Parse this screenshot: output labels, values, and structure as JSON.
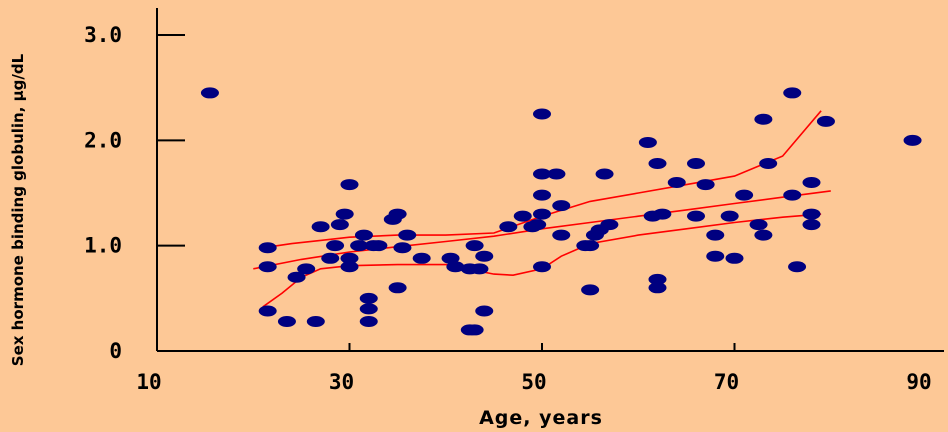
{
  "chart_data": {
    "type": "scatter",
    "title": "",
    "xlabel": "Age, years",
    "ylabel": "Sex hormone binding globulin, µg/dL",
    "xlim": [
      10,
      90
    ],
    "ylim": [
      0,
      3.0
    ],
    "x_ticks": [
      "10",
      "30",
      "50",
      "70",
      "90"
    ],
    "y_ticks": [
      "0",
      "1.0",
      "2.0",
      "3.0"
    ],
    "grid": false,
    "legend": "none",
    "colors": {
      "background": "#fdc896",
      "points": "#000080",
      "curves": "#ff0000",
      "axes": "#000000"
    },
    "points": [
      [
        15.5,
        2.45
      ],
      [
        21.5,
        0.98
      ],
      [
        21.5,
        0.8
      ],
      [
        21.5,
        0.38
      ],
      [
        23.5,
        0.28
      ],
      [
        24.5,
        0.7
      ],
      [
        25.5,
        0.78
      ],
      [
        26.5,
        0.28
      ],
      [
        27,
        1.18
      ],
      [
        28,
        0.88
      ],
      [
        28.5,
        1.0
      ],
      [
        29,
        1.2
      ],
      [
        29.5,
        1.3
      ],
      [
        30,
        0.88
      ],
      [
        30,
        1.58
      ],
      [
        30,
        0.8
      ],
      [
        31,
        1.0
      ],
      [
        31.5,
        1.1
      ],
      [
        32,
        0.5
      ],
      [
        32,
        0.4
      ],
      [
        32,
        0.28
      ],
      [
        32.5,
        1.0
      ],
      [
        33,
        1.0
      ],
      [
        34.5,
        1.25
      ],
      [
        35,
        1.3
      ],
      [
        35,
        0.6
      ],
      [
        35.5,
        0.98
      ],
      [
        36,
        1.1
      ],
      [
        37.5,
        0.88
      ],
      [
        40.5,
        0.88
      ],
      [
        41,
        0.8
      ],
      [
        42.5,
        0.78
      ],
      [
        42.5,
        0.2
      ],
      [
        43,
        1.0
      ],
      [
        43,
        0.2
      ],
      [
        43.5,
        0.78
      ],
      [
        44,
        0.9
      ],
      [
        44,
        0.38
      ],
      [
        46.5,
        1.18
      ],
      [
        48,
        1.28
      ],
      [
        49,
        1.18
      ],
      [
        49.5,
        1.2
      ],
      [
        50,
        2.25
      ],
      [
        50,
        1.68
      ],
      [
        50,
        1.48
      ],
      [
        50,
        1.3
      ],
      [
        50,
        0.8
      ],
      [
        51.5,
        1.68
      ],
      [
        52,
        1.1
      ],
      [
        52,
        1.38
      ],
      [
        54.5,
        1.0
      ],
      [
        55,
        1.0
      ],
      [
        55,
        0.58
      ],
      [
        55.5,
        1.1
      ],
      [
        56,
        1.15
      ],
      [
        56.5,
        1.68
      ],
      [
        57,
        1.2
      ],
      [
        61,
        1.98
      ],
      [
        61.5,
        1.28
      ],
      [
        62,
        1.78
      ],
      [
        62,
        0.68
      ],
      [
        62,
        0.6
      ],
      [
        62.5,
        1.3
      ],
      [
        64,
        1.6
      ],
      [
        66,
        1.78
      ],
      [
        66,
        1.28
      ],
      [
        67,
        1.58
      ],
      [
        68,
        1.1
      ],
      [
        68,
        0.9
      ],
      [
        69.5,
        1.28
      ],
      [
        70,
        0.88
      ],
      [
        71,
        1.48
      ],
      [
        72.5,
        1.2
      ],
      [
        73,
        2.2
      ],
      [
        73,
        1.1
      ],
      [
        73.5,
        1.78
      ],
      [
        76,
        2.45
      ],
      [
        76,
        1.48
      ],
      [
        76.5,
        0.8
      ],
      [
        78,
        1.3
      ],
      [
        78,
        1.2
      ],
      [
        78,
        1.6
      ],
      [
        79.5,
        2.18
      ],
      [
        88.5,
        2.0
      ]
    ],
    "curves": [
      {
        "x": [
          20,
          25,
          30,
          35,
          40,
          45,
          50,
          55,
          60,
          65,
          70,
          75,
          80
        ],
        "y": [
          0.78,
          0.87,
          0.94,
          0.99,
          1.04,
          1.09,
          1.16,
          1.22,
          1.28,
          1.34,
          1.4,
          1.46,
          1.52
        ]
      },
      {
        "x": [
          21,
          24,
          27,
          30,
          35,
          40,
          45,
          50,
          55,
          60,
          65,
          70,
          75,
          79
        ],
        "y": [
          0.98,
          1.02,
          1.05,
          1.08,
          1.1,
          1.1,
          1.12,
          1.28,
          1.42,
          1.5,
          1.58,
          1.66,
          1.85,
          2.28
        ]
      },
      {
        "x": [
          21,
          23,
          25,
          27,
          30,
          35,
          40,
          45,
          47,
          50,
          52,
          55,
          60,
          65,
          70,
          75,
          79
        ],
        "y": [
          0.42,
          0.55,
          0.7,
          0.78,
          0.81,
          0.82,
          0.82,
          0.73,
          0.72,
          0.78,
          0.9,
          1.02,
          1.1,
          1.16,
          1.22,
          1.27,
          1.3
        ]
      }
    ]
  }
}
